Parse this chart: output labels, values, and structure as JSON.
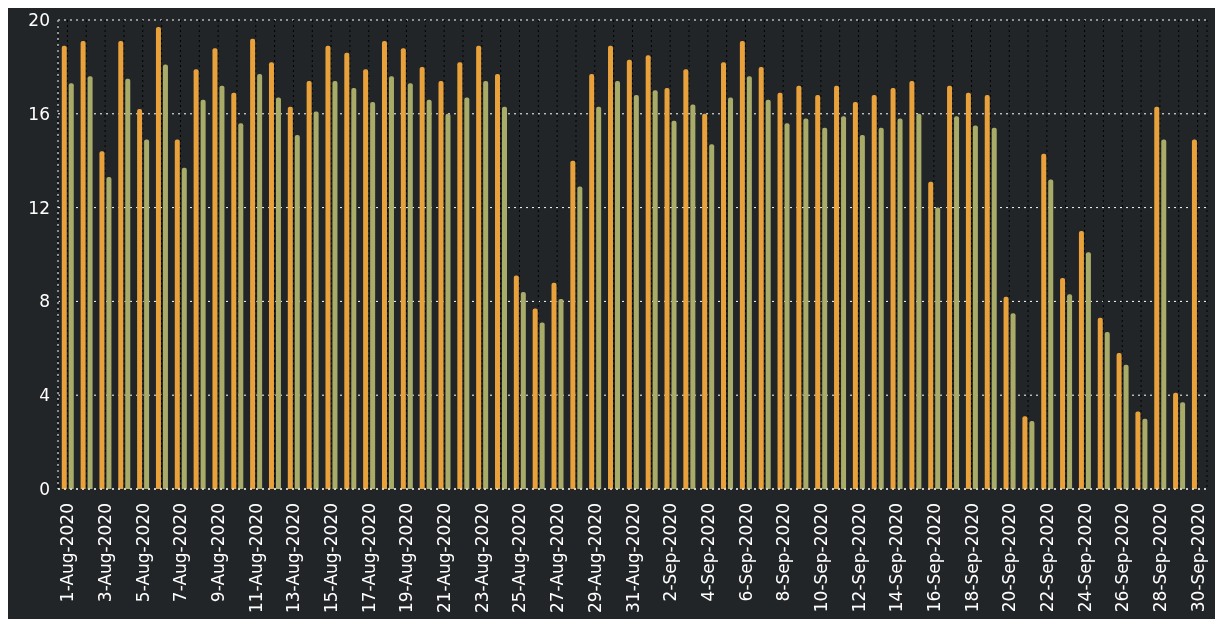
{
  "chart_data": {
    "type": "bar",
    "categories": [
      "1-Aug-2020",
      null,
      "3-Aug-2020",
      null,
      "5-Aug-2020",
      null,
      "7-Aug-2020",
      null,
      "9-Aug-2020",
      null,
      "11-Aug-2020",
      null,
      "13-Aug-2020",
      null,
      "15-Aug-2020",
      null,
      "17-Aug-2020",
      null,
      "19-Aug-2020",
      null,
      "21-Aug-2020",
      null,
      "23-Aug-2020",
      null,
      "25-Aug-2020",
      null,
      "27-Aug-2020",
      null,
      "29-Aug-2020",
      null,
      "31-Aug-2020",
      null,
      "2-Sep-2020",
      null,
      "4-Sep-2020",
      null,
      "6-Sep-2020",
      null,
      "8-Sep-2020",
      null,
      "10-Sep-2020",
      null,
      "12-Sep-2020",
      null,
      "14-Sep-2020",
      null,
      "16-Sep-2020",
      null,
      "18-Sep-2020",
      null,
      "20-Sep-2020",
      null,
      "22-Sep-2020",
      null,
      "24-Sep-2020",
      null,
      "26-Sep-2020",
      null,
      "28-Sep-2020",
      null,
      "30-Sep-2020"
    ],
    "series": [
      {
        "color": "#e9a23b",
        "values": [
          18.9,
          19.1,
          14.4,
          19.1,
          16.2,
          19.7,
          14.9,
          17.9,
          18.8,
          16.9,
          19.2,
          18.2,
          16.3,
          17.4,
          18.9,
          18.6,
          17.9,
          19.1,
          18.8,
          18.0,
          17.4,
          18.2,
          18.9,
          17.7,
          9.1,
          7.7,
          8.8,
          14.0,
          17.7,
          18.9,
          18.3,
          18.5,
          17.1,
          17.9,
          16.0,
          18.2,
          19.1,
          18.0,
          16.9,
          17.2,
          16.8,
          17.2,
          16.5,
          16.8,
          17.1,
          17.4,
          13.1,
          17.2,
          16.9,
          16.8,
          8.2,
          3.1,
          14.3,
          9.0,
          11.0,
          7.3,
          5.8,
          3.3,
          16.3,
          4.1,
          14.9
        ]
      },
      {
        "color": "#a9ab69",
        "values": [
          17.3,
          17.6,
          13.3,
          17.5,
          14.9,
          18.1,
          13.7,
          16.6,
          17.2,
          15.6,
          17.7,
          16.7,
          15.1,
          16.1,
          17.4,
          17.1,
          16.5,
          17.6,
          17.3,
          16.6,
          16.0,
          16.7,
          17.4,
          16.3,
          8.4,
          7.1,
          8.1,
          12.9,
          16.3,
          17.4,
          16.8,
          17.0,
          15.7,
          16.4,
          14.7,
          16.7,
          17.6,
          16.6,
          15.6,
          15.8,
          15.4,
          15.9,
          15.1,
          15.4,
          15.8,
          16.0,
          12.0,
          15.9,
          15.5,
          15.4,
          7.5,
          2.9,
          13.2,
          8.3,
          10.1,
          6.7,
          5.3,
          3.0,
          14.9,
          3.7,
          null
        ]
      }
    ],
    "ylim": [
      0,
      20
    ],
    "yticks": [
      0,
      4,
      8,
      12,
      16,
      20
    ],
    "grid": true
  }
}
